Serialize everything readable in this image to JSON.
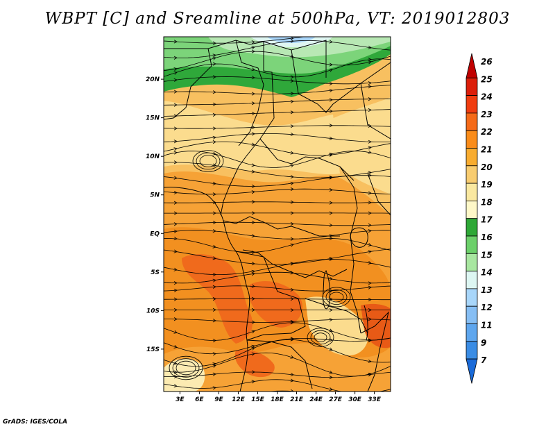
{
  "title": "WBPT [C] and Sreamline at 500hPa, VT: 2019012803",
  "credit": "GrADS: IGES/COLA",
  "map": {
    "lat_labels": [
      "20N",
      "15N",
      "10N",
      "5N",
      "EQ",
      "5S",
      "10S",
      "15S"
    ],
    "lat_values": [
      20,
      15,
      10,
      5,
      0,
      -5,
      -10,
      -15
    ],
    "lon_labels": [
      "3E",
      "6E",
      "9E",
      "12E",
      "15E",
      "18E",
      "21E",
      "24E",
      "27E",
      "30E",
      "33E"
    ],
    "lon_values": [
      3,
      6,
      9,
      12,
      15,
      18,
      21,
      24,
      27,
      30,
      33
    ],
    "lon_range": [
      0.5,
      35.5
    ],
    "lat_range": [
      -20.5,
      25.5
    ]
  },
  "colorbar": {
    "labels": [
      "26",
      "25",
      "24",
      "23",
      "22",
      "21",
      "20",
      "19",
      "18",
      "17",
      "16",
      "15",
      "14",
      "13",
      "12",
      "11",
      "9",
      "7"
    ],
    "colors": [
      "#c00000",
      "#dc1e0a",
      "#f03c10",
      "#f56a18",
      "#fa8c1a",
      "#f8ac30",
      "#f8cc70",
      "#fae8a0",
      "#fef8c8",
      "#2ea836",
      "#6cd06a",
      "#a8e6a0",
      "#ddf6f2",
      "#a8d6fa",
      "#86bef4",
      "#5ea6ee",
      "#3a8ce4",
      "#1a6ad8"
    ]
  }
}
